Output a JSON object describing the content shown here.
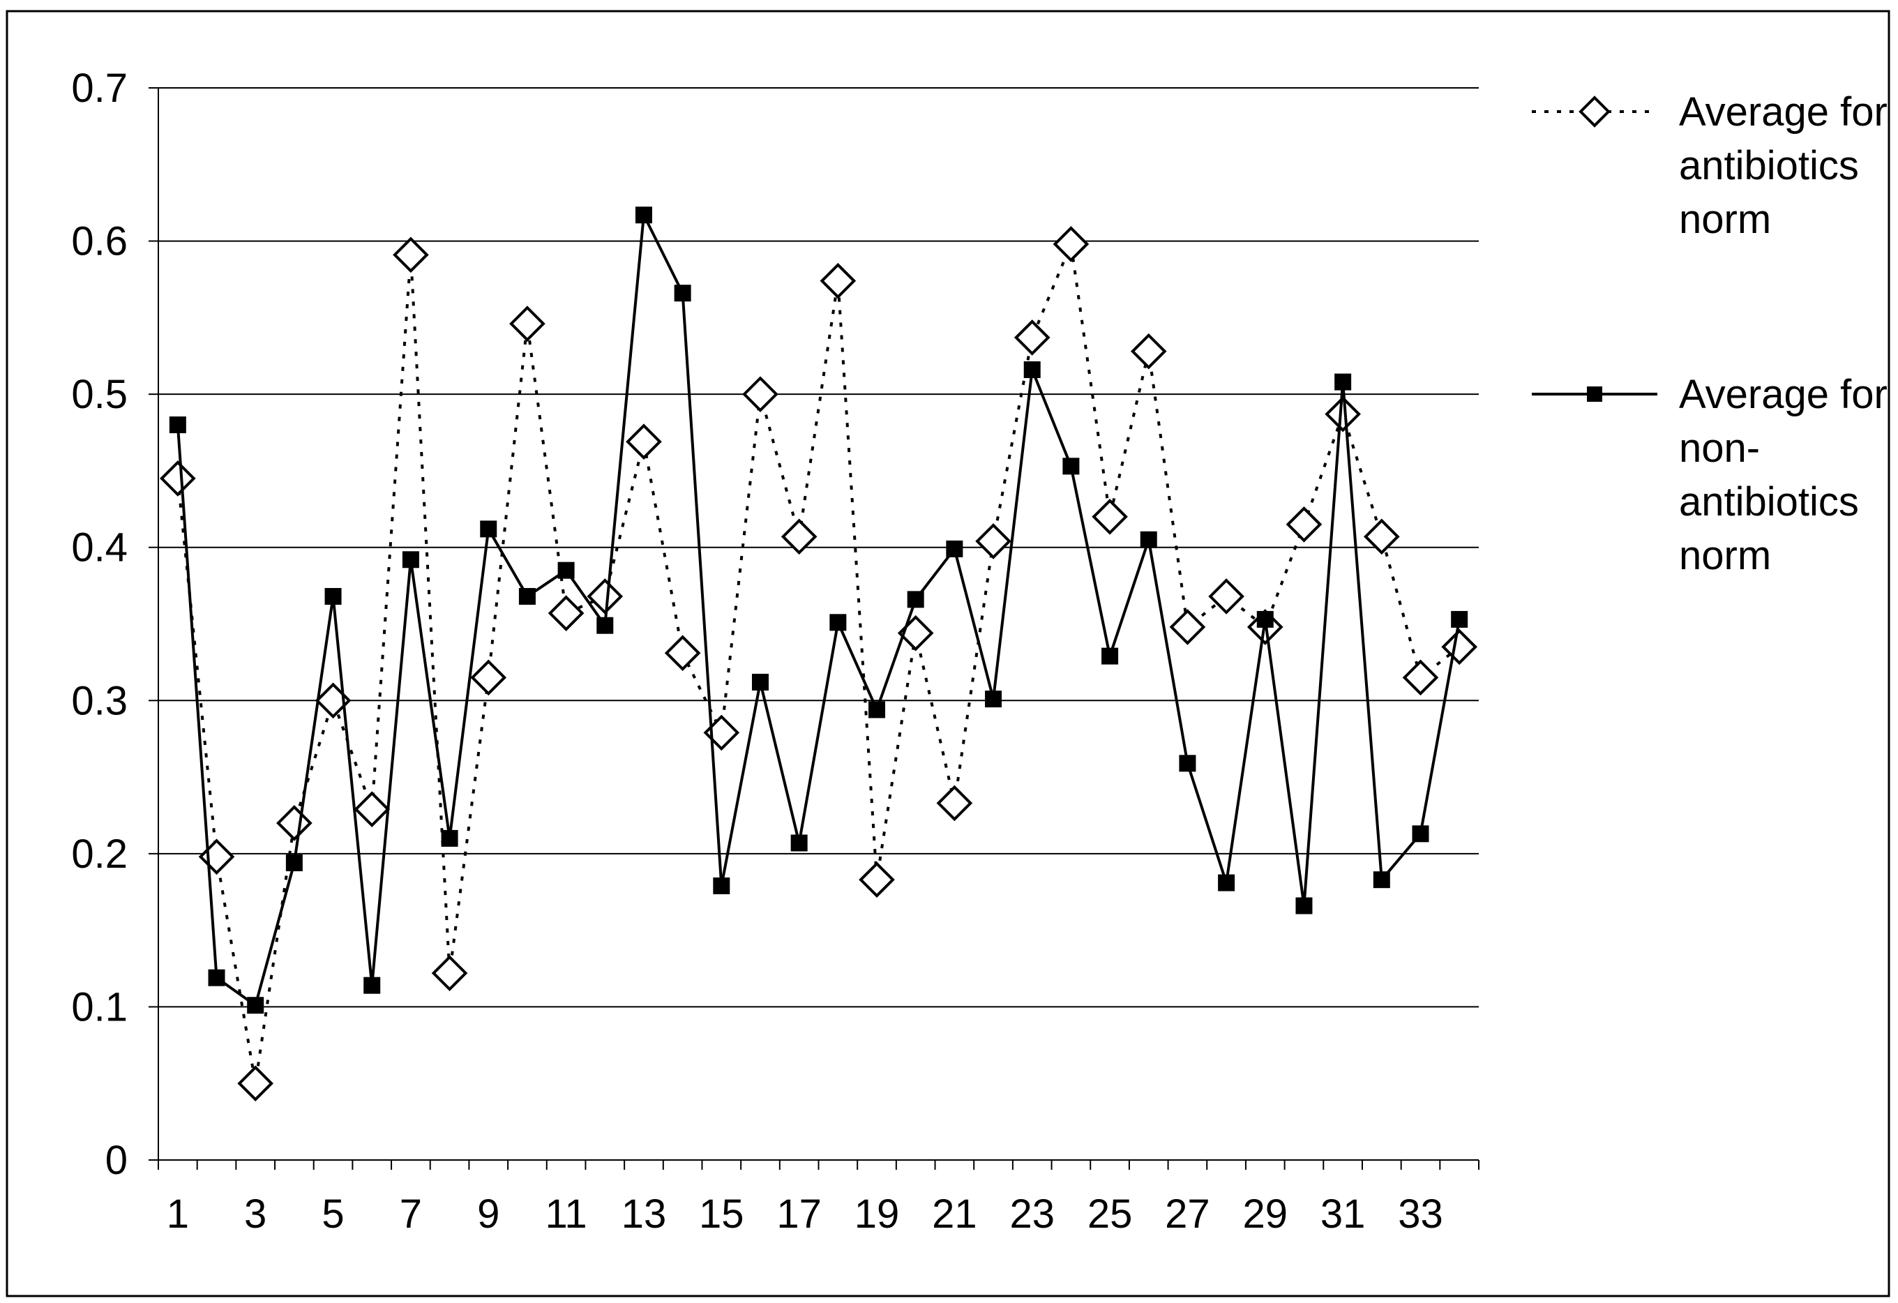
{
  "chart_data": {
    "type": "line",
    "title": "",
    "xlabel": "",
    "ylabel": "",
    "x": [
      1,
      2,
      3,
      4,
      5,
      6,
      7,
      8,
      9,
      10,
      11,
      12,
      13,
      14,
      15,
      16,
      17,
      18,
      19,
      20,
      21,
      22,
      23,
      24,
      25,
      26,
      27,
      28,
      29,
      30,
      31,
      32,
      33,
      34
    ],
    "x_tick_labels": [
      "1",
      "3",
      "5",
      "7",
      "9",
      "11",
      "13",
      "15",
      "17",
      "19",
      "21",
      "23",
      "25",
      "27",
      "29",
      "31",
      "33"
    ],
    "y_tick_labels": [
      "0",
      "0.1",
      "0.2",
      "0.3",
      "0.4",
      "0.5",
      "0.6",
      "0.7"
    ],
    "ylim": [
      0,
      0.7
    ],
    "grid": "horizontal",
    "legend_position": "right",
    "series": [
      {
        "name_lines": [
          "Average for",
          "antibiotics",
          "norm"
        ],
        "style": "dotted",
        "marker": "diamond",
        "color": "#000000",
        "values": [
          0.445,
          0.198,
          0.05,
          0.22,
          0.3,
          0.229,
          0.591,
          0.122,
          0.315,
          0.546,
          0.357,
          0.368,
          0.469,
          0.331,
          0.279,
          0.5,
          0.407,
          0.574,
          0.183,
          0.344,
          0.233,
          0.404,
          0.537,
          0.598,
          0.42,
          0.528,
          0.348,
          0.368,
          0.348,
          0.415,
          0.487,
          0.407,
          0.315,
          0.335
        ]
      },
      {
        "name_lines": [
          "Average for",
          "non-",
          "antibiotics",
          "norm"
        ],
        "style": "solid",
        "marker": "square",
        "color": "#000000",
        "values": [
          0.48,
          0.119,
          0.101,
          0.194,
          0.368,
          0.114,
          0.392,
          0.21,
          0.412,
          0.368,
          0.385,
          0.349,
          0.617,
          0.566,
          0.179,
          0.312,
          0.207,
          0.351,
          0.294,
          0.366,
          0.399,
          0.301,
          0.516,
          0.453,
          0.329,
          0.405,
          0.259,
          0.181,
          0.353,
          0.166,
          0.508,
          0.183,
          0.213,
          0.353
        ]
      }
    ]
  }
}
